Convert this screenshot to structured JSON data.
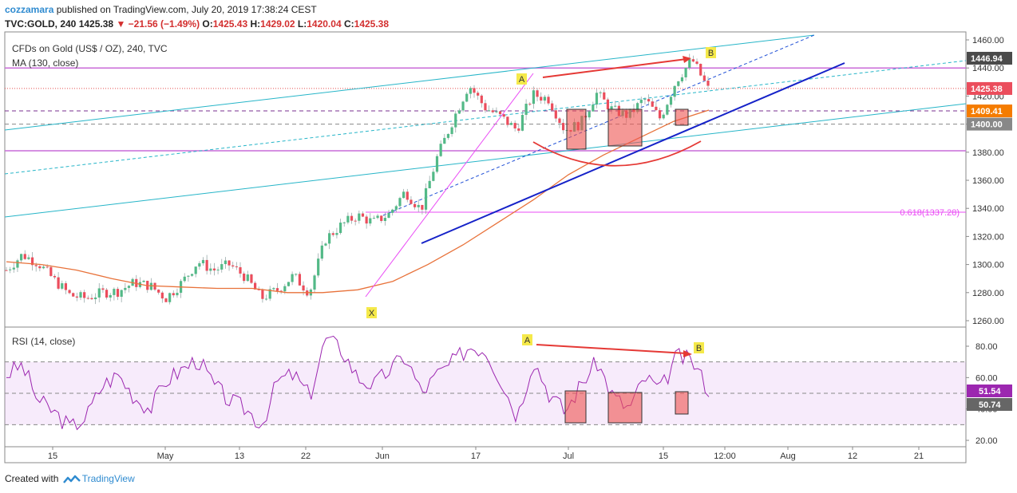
{
  "header": {
    "author": "cozzamara",
    "published": "published on TradingView.com, July 20, 2019 17:38:24 CEST",
    "symbol": "TVC:GOLD, 240",
    "last": "1425.38",
    "change": "−21.56 (−1.49%)",
    "open_label": "O:",
    "open": "1425.43",
    "high_label": "H:",
    "high": "1429.02",
    "low_label": "L:",
    "low": "1420.04",
    "close_label": "C:",
    "close": "1425.38"
  },
  "legend": {
    "title": "CFDs on Gold (US$ / OZ), 240, TVC",
    "ma": "MA (130, close)",
    "rsi": "RSI (14, close)"
  },
  "footer": {
    "created_with": "Created with",
    "brand": "TradingView"
  },
  "colors": {
    "up": "#53b987",
    "down": "#eb4d5c",
    "ma": "#e8723a",
    "rsi": "#9c27b0",
    "channel": "#26b5c8",
    "trend": "#1522c8",
    "fib": "#ea4cf5",
    "arrow": "#e53935",
    "price_tag": "#555555",
    "highlight_tag": "#f57c00"
  },
  "chart_data": [
    {
      "type": "candlestick",
      "title": "CFDs on Gold (US$ / OZ), 240, TVC",
      "ylim": [
        1255,
        1465
      ],
      "y_ticks": [
        "1460.00",
        "1440.00",
        "1420.00",
        "1400.00",
        "1380.00",
        "1360.00",
        "1340.00",
        "1320.00",
        "1300.00",
        "1280.00",
        "1260.00"
      ],
      "x_ticks": [
        "15",
        "May",
        "13",
        "22",
        "Jun",
        "17",
        "Jul",
        "15",
        "12:00",
        "Aug",
        "12",
        "21"
      ],
      "price_tags": [
        {
          "label": "1446.94",
          "value": 1446.94,
          "style": "dark"
        },
        {
          "label": "1425.38",
          "value": 1425.38,
          "style": "red"
        },
        {
          "label": "1409.41",
          "value": 1409.41,
          "style": "orange"
        },
        {
          "label": "1400.00",
          "value": 1400.0,
          "style": "gray"
        }
      ],
      "horizontal_levels": [
        1440,
        1425.38,
        1409.41,
        1400,
        1381
      ],
      "fib_label": "0.618(1337.28)",
      "fib_value": 1337.28,
      "annotations": [
        "A",
        "B",
        "X"
      ],
      "series": [
        {
          "name": "MA (130, close)",
          "values": [
            1302,
            1300,
            1296,
            1290,
            1285,
            1284,
            1283,
            1283,
            1280,
            1280,
            1282,
            1288,
            1300,
            1314,
            1330,
            1346,
            1364,
            1378,
            1390,
            1402,
            1410
          ]
        }
      ],
      "close_path": [
        1296,
        1307,
        1301,
        1289,
        1278,
        1276,
        1280,
        1281,
        1287,
        1285,
        1276,
        1287,
        1302,
        1296,
        1300,
        1291,
        1276,
        1282,
        1292,
        1280,
        1318,
        1328,
        1335,
        1330,
        1336,
        1352,
        1339,
        1376,
        1403,
        1428,
        1412,
        1405,
        1396,
        1421,
        1418,
        1396,
        1400,
        1422,
        1410,
        1406,
        1418,
        1404,
        1431,
        1446,
        1425
      ]
    },
    {
      "type": "line",
      "title": "RSI (14, close)",
      "ylim": [
        20,
        90
      ],
      "y_ticks": [
        "80.00",
        "60.00",
        "40.00",
        "20.00"
      ],
      "value_tags": [
        {
          "label": "51.54",
          "value": 51.54
        },
        {
          "label": "50.74",
          "value": 50.74
        }
      ],
      "bands": [
        70,
        50,
        30
      ],
      "annotations": [
        "A",
        "B"
      ],
      "series": [
        {
          "name": "RSI (14, close)",
          "values": [
            62,
            68,
            45,
            38,
            28,
            35,
            55,
            62,
            48,
            40,
            58,
            65,
            72,
            55,
            45,
            40,
            30,
            58,
            62,
            48,
            85,
            78,
            60,
            55,
            65,
            74,
            50,
            62,
            70,
            80,
            78,
            58,
            35,
            72,
            50,
            38,
            56,
            70,
            48,
            40,
            60,
            52,
            74,
            70,
            52
          ]
        }
      ]
    }
  ]
}
